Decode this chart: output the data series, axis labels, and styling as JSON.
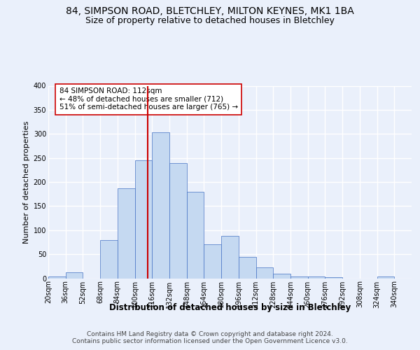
{
  "title1": "84, SIMPSON ROAD, BLETCHLEY, MILTON KEYNES, MK1 1BA",
  "title2": "Size of property relative to detached houses in Bletchley",
  "xlabel": "Distribution of detached houses by size in Bletchley",
  "ylabel": "Number of detached properties",
  "bin_labels": [
    "20sqm",
    "36sqm",
    "52sqm",
    "68sqm",
    "84sqm",
    "100sqm",
    "116sqm",
    "132sqm",
    "148sqm",
    "164sqm",
    "180sqm",
    "196sqm",
    "212sqm",
    "228sqm",
    "244sqm",
    "260sqm",
    "276sqm",
    "292sqm",
    "308sqm",
    "324sqm",
    "340sqm"
  ],
  "bin_edges": [
    20,
    36,
    52,
    68,
    84,
    100,
    116,
    132,
    148,
    164,
    180,
    196,
    212,
    228,
    244,
    260,
    276,
    292,
    308,
    324,
    340
  ],
  "bar_heights": [
    3,
    13,
    0,
    80,
    187,
    245,
    303,
    240,
    180,
    71,
    88,
    44,
    22,
    10,
    4,
    4,
    2,
    0,
    0,
    3
  ],
  "bar_color": "#c5d9f1",
  "bar_edge_color": "#4472c4",
  "property_size": 112,
  "vline_color": "#cc0000",
  "annotation_text": "84 SIMPSON ROAD: 112sqm\n← 48% of detached houses are smaller (712)\n51% of semi-detached houses are larger (765) →",
  "annotation_box_color": "white",
  "annotation_box_edge": "#cc0000",
  "footer_text": "Contains HM Land Registry data © Crown copyright and database right 2024.\nContains public sector information licensed under the Open Government Licence v3.0.",
  "ylim": [
    0,
    400
  ],
  "background_color": "#eaf0fb",
  "plot_background": "#eaf0fb",
  "grid_color": "white",
  "title1_fontsize": 10,
  "title2_fontsize": 9,
  "xlabel_fontsize": 8.5,
  "ylabel_fontsize": 8,
  "tick_fontsize": 7,
  "footer_fontsize": 6.5
}
